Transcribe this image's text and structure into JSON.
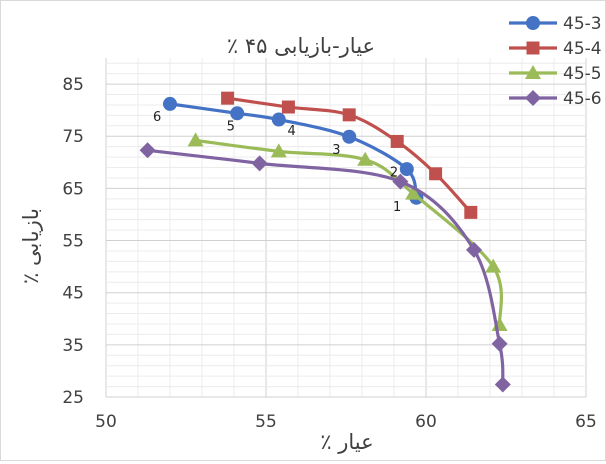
{
  "chart_data": {
    "type": "line",
    "title": "عیار-بازیابی ۴۵ ٪",
    "xlabel": "عیار ٪",
    "ylabel": "بازیابی ٪",
    "xlim": [
      50,
      65
    ],
    "ylim": [
      25,
      90
    ],
    "x_ticks": [
      50,
      55,
      60,
      65
    ],
    "y_ticks": [
      25,
      35,
      45,
      55,
      65,
      75,
      85
    ],
    "grid": true,
    "legend_position": "top-right",
    "series": [
      {
        "name": "45-3",
        "color": "#4472C4",
        "marker": "circle",
        "points": [
          [
            52.0,
            81.2
          ],
          [
            54.1,
            79.4
          ],
          [
            55.4,
            78.2
          ],
          [
            57.6,
            74.9
          ],
          [
            59.4,
            68.7
          ],
          [
            59.7,
            63.2
          ]
        ]
      },
      {
        "name": "45-4",
        "color": "#C0504D",
        "marker": "square",
        "points": [
          [
            53.8,
            82.3
          ],
          [
            55.7,
            80.6
          ],
          [
            57.6,
            79.1
          ],
          [
            59.1,
            74.0
          ],
          [
            60.3,
            67.8
          ],
          [
            61.4,
            60.4
          ]
        ]
      },
      {
        "name": "45-5",
        "color": "#9BBB59",
        "marker": "triangle",
        "points": [
          [
            52.8,
            74.2
          ],
          [
            55.4,
            72.1
          ],
          [
            58.1,
            70.5
          ],
          [
            59.6,
            64.0
          ],
          [
            62.1,
            50.0
          ],
          [
            62.3,
            38.8
          ]
        ]
      },
      {
        "name": "45-6",
        "color": "#8064A2",
        "marker": "diamond",
        "points": [
          [
            51.3,
            72.3
          ],
          [
            54.8,
            69.8
          ],
          [
            59.2,
            66.3
          ],
          [
            61.5,
            53.2
          ],
          [
            62.3,
            35.2
          ],
          [
            62.4,
            27.4
          ]
        ]
      }
    ],
    "point_labels": [
      {
        "text": "6",
        "x": 51.6,
        "y": 77.9
      },
      {
        "text": "5",
        "x": 53.9,
        "y": 76.1
      },
      {
        "text": "4",
        "x": 55.8,
        "y": 75.2
      },
      {
        "text": "3",
        "x": 57.2,
        "y": 71.6
      },
      {
        "text": "2",
        "x": 59.0,
        "y": 67.3
      },
      {
        "text": "1",
        "x": 59.1,
        "y": 60.7
      }
    ]
  }
}
